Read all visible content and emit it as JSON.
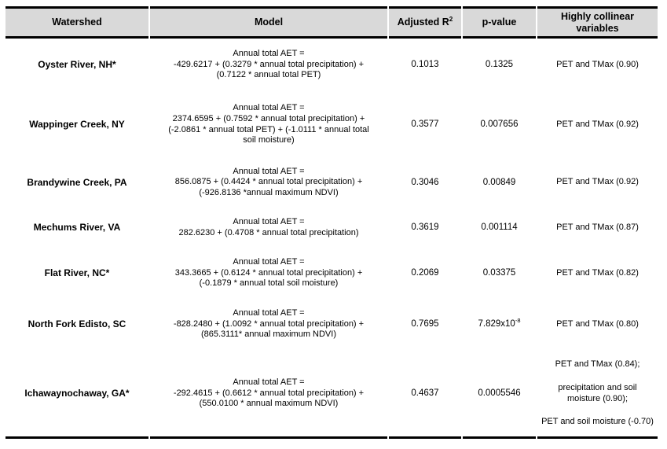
{
  "table": {
    "columns": [
      {
        "label": "Watershed"
      },
      {
        "label": "Model"
      },
      {
        "label": "Adjusted R",
        "sup": "2"
      },
      {
        "label": "p-value"
      },
      {
        "label": "Highly collinear variables"
      }
    ],
    "rows": [
      {
        "watershed": "Oyster River, NH*",
        "model": "Annual total AET =\n-429.6217 + (0.3279 * annual total precipitation) +\n(0.7122 * annual total PET)",
        "adjusted_r2": "0.1013",
        "p_value": "0.1325",
        "collinear": [
          "PET and TMax (0.90)"
        ]
      },
      {
        "watershed": "Wappinger Creek, NY",
        "model": "Annual total AET =\n2374.6595 + (0.7592 * annual total precipitation) +\n(-2.0861 * annual total PET) + (-1.0111 * annual total\nsoil moisture)",
        "adjusted_r2": "0.3577",
        "p_value": "0.007656",
        "collinear": [
          "PET and TMax (0.92)"
        ]
      },
      {
        "watershed": "Brandywine Creek, PA",
        "model": "Annual total AET =\n856.0875 + (0.4424 * annual total precipitation) +\n(-926.8136 *annual maximum NDVI)",
        "adjusted_r2": "0.3046",
        "p_value": "0.00849",
        "collinear": [
          "PET and TMax (0.92)"
        ]
      },
      {
        "watershed": "Mechums River, VA",
        "model": "Annual total AET =\n282.6230 + (0.4708 * annual total precipitation)",
        "adjusted_r2": "0.3619",
        "p_value": "0.001114",
        "collinear": [
          "PET and TMax (0.87)"
        ]
      },
      {
        "watershed": "Flat River, NC*",
        "model": "Annual total AET =\n343.3665 + (0.6124 * annual total precipitation) +\n(-0.1879 * annual total soil moisture)",
        "adjusted_r2": "0.2069",
        "p_value": "0.03375",
        "collinear": [
          "PET and TMax (0.82)"
        ]
      },
      {
        "watershed": "North Fork Edisto, SC",
        "model": "Annual total AET =\n-828.2480 + (1.0092 * annual total precipitation) +\n(865.3111* annual maximum NDVI)",
        "adjusted_r2": "0.7695",
        "p_value": "7.829x10",
        "p_value_sup": "-8",
        "collinear": [
          "PET and TMax (0.80)"
        ]
      },
      {
        "watershed": "Ichawaynochaway, GA*",
        "model": "Annual total AET =\n-292.4615 + (0.6612 * annual total precipitation) +\n(550.0100 * annual maximum NDVI)",
        "adjusted_r2": "0.4637",
        "p_value": "0.0005546",
        "collinear": [
          "PET and TMax (0.84);",
          "precipitation and soil moisture (0.90);",
          "PET and soil moisture (-0.70)"
        ]
      }
    ]
  }
}
